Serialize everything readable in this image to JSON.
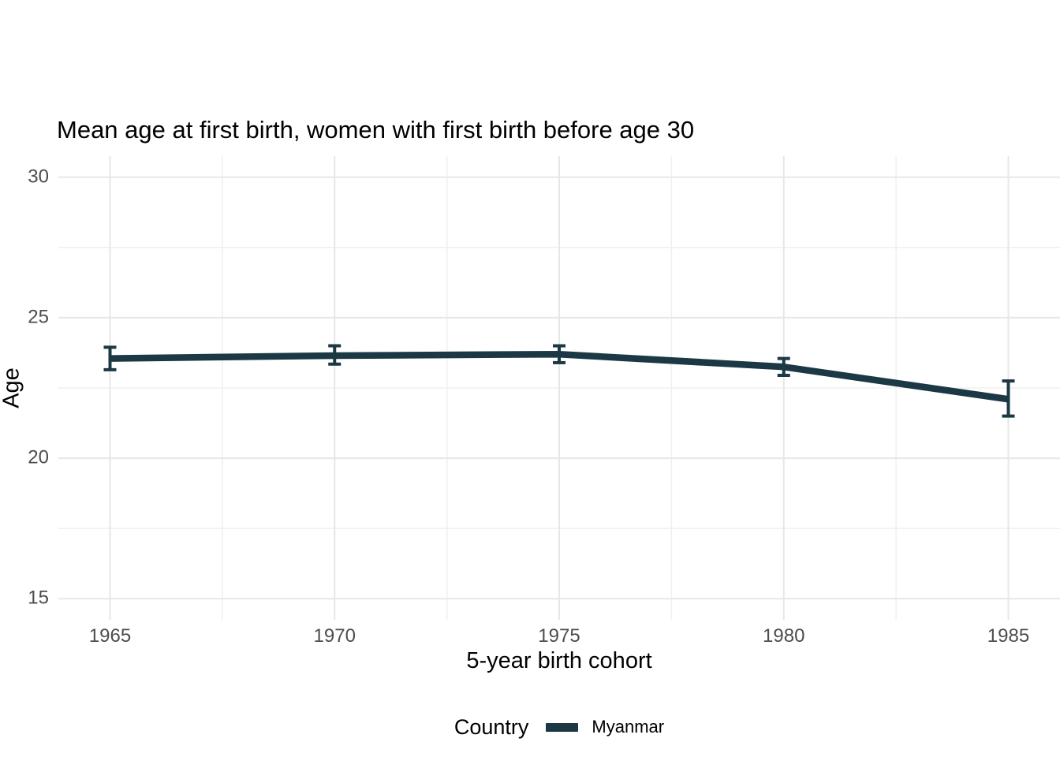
{
  "chart_data": {
    "type": "line",
    "title": "Mean age at first birth, women with first birth before age 30",
    "xlabel": "5-year birth cohort",
    "ylabel": "Age",
    "x": [
      1965,
      1970,
      1975,
      1980,
      1985
    ],
    "series": [
      {
        "name": "Myanmar",
        "values": [
          23.55,
          23.65,
          23.7,
          23.25,
          22.1
        ],
        "ci_low": [
          23.15,
          23.35,
          23.4,
          22.95,
          21.5
        ],
        "ci_high": [
          23.95,
          24.0,
          24.0,
          23.55,
          22.75
        ]
      }
    ],
    "x_ticks": [
      1965,
      1970,
      1975,
      1980,
      1985
    ],
    "y_ticks": [
      15,
      20,
      25,
      30
    ],
    "x_minor_ticks": [
      1967.5,
      1972.5,
      1977.5,
      1982.5
    ],
    "y_minor_ticks": [
      17.5,
      22.5,
      27.5
    ],
    "xlim": [
      1963.85,
      1986.15
    ],
    "ylim": [
      14.25,
      30.75
    ],
    "grid": true,
    "legend_position": "bottom",
    "legend_title": "Country"
  },
  "colors": {
    "line": "#1b3844",
    "grid_major": "#e7e7e7",
    "grid_minor": "#f0f0f0",
    "tick_text": "#4d4d4d",
    "title_text": "#000000",
    "background": "#ffffff"
  }
}
